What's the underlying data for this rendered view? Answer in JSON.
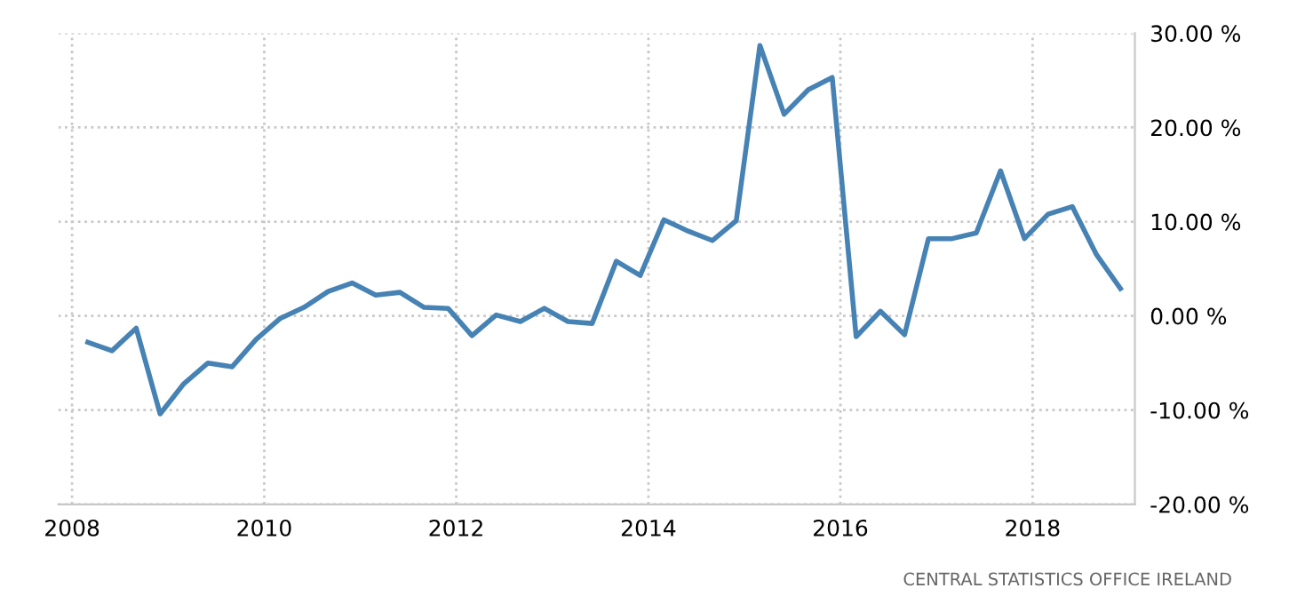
{
  "chart_data": {
    "type": "line",
    "x": [
      "2008-03",
      "2008-06",
      "2008-09",
      "2008-12",
      "2009-03",
      "2009-06",
      "2009-09",
      "2009-12",
      "2010-03",
      "2010-06",
      "2010-09",
      "2010-12",
      "2011-03",
      "2011-06",
      "2011-09",
      "2011-12",
      "2012-03",
      "2012-06",
      "2012-09",
      "2012-12",
      "2013-03",
      "2013-06",
      "2013-09",
      "2013-12",
      "2014-03",
      "2014-06",
      "2014-09",
      "2014-12",
      "2015-03",
      "2015-06",
      "2015-09",
      "2015-12",
      "2016-03",
      "2016-06",
      "2016-09",
      "2016-12",
      "2017-03",
      "2017-06",
      "2017-09",
      "2017-12",
      "2018-03",
      "2018-06",
      "2018-09",
      "2018-12"
    ],
    "series": [
      {
        "color": "#4682b4",
        "values": [
          -2.8,
          -3.7,
          -1.3,
          -10.4,
          -7.2,
          -5.0,
          -5.4,
          -2.5,
          -0.3,
          0.9,
          2.6,
          3.5,
          2.2,
          2.5,
          0.9,
          0.8,
          -2.1,
          0.1,
          -0.6,
          0.8,
          -0.6,
          -0.8,
          5.8,
          4.3,
          10.2,
          9.0,
          8.0,
          10.1,
          28.7,
          21.4,
          24.0,
          25.3,
          -2.2,
          0.5,
          -2.0,
          8.2,
          8.2,
          8.8,
          15.4,
          8.2,
          10.8,
          11.6,
          6.5,
          2.9
        ]
      }
    ],
    "xlim": [
      "2007-11-10",
      "2019-01-25"
    ],
    "xticks": [
      {
        "value": "2008-01-01",
        "label": "2008"
      },
      {
        "value": "2010-01-01",
        "label": "2010"
      },
      {
        "value": "2012-01-01",
        "label": "2012"
      },
      {
        "value": "2014-01-01",
        "label": "2014"
      },
      {
        "value": "2016-01-01",
        "label": "2016"
      },
      {
        "value": "2018-01-01",
        "label": "2018"
      }
    ],
    "ylim": [
      -20,
      30
    ],
    "yticks": [
      {
        "value": 30,
        "label": "30.00 %"
      },
      {
        "value": 20,
        "label": "20.00 %"
      },
      {
        "value": 10,
        "label": "10.00 %"
      },
      {
        "value": 0,
        "label": "0.00 %"
      },
      {
        "value": -10,
        "label": "-10.00 %"
      },
      {
        "value": -20,
        "label": "-20.00 %"
      }
    ],
    "grid": true,
    "line_style": "solid",
    "annotations": [
      "CENTRAL STATISTICS OFFICE IRELAND"
    ]
  }
}
